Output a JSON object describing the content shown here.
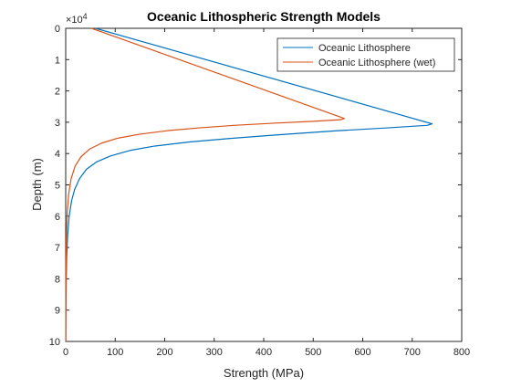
{
  "chart_data": {
    "type": "line",
    "title": "Oceanic Lithospheric Strength Models",
    "xlabel": "Strength (MPa)",
    "ylabel": "Depth (m)",
    "y_exponent_label": "×10",
    "y_exponent_value": "4",
    "xlim": [
      0,
      800
    ],
    "ylim": [
      0,
      100000
    ],
    "y_reversed": true,
    "x_ticks": [
      0,
      100,
      200,
      300,
      400,
      500,
      600,
      700,
      800
    ],
    "x_tick_labels": [
      "0",
      "100",
      "200",
      "300",
      "400",
      "500",
      "600",
      "700",
      "800"
    ],
    "y_ticks": [
      0,
      10000,
      20000,
      30000,
      40000,
      50000,
      60000,
      70000,
      80000,
      90000,
      100000
    ],
    "y_tick_labels": [
      "0",
      "1",
      "2",
      "3",
      "4",
      "5",
      "6",
      "7",
      "8",
      "9",
      "10"
    ],
    "grid": false,
    "legend_position": "top-right",
    "series": [
      {
        "name": "Oceanic Lithosphere",
        "color": "#0072BD",
        "points": [
          [
            60,
            0
          ],
          [
            740,
            30500
          ],
          [
            730,
            31000
          ],
          [
            650,
            31800
          ],
          [
            540,
            32800
          ],
          [
            430,
            34000
          ],
          [
            330,
            35200
          ],
          [
            250,
            36300
          ],
          [
            180,
            37600
          ],
          [
            130,
            39000
          ],
          [
            90,
            40800
          ],
          [
            62,
            42700
          ],
          [
            42,
            45000
          ],
          [
            28,
            48000
          ],
          [
            18,
            51500
          ],
          [
            12,
            55000
          ],
          [
            7,
            60000
          ],
          [
            4,
            66000
          ],
          [
            2,
            73000
          ],
          [
            1,
            82000
          ],
          [
            0.4,
            92000
          ],
          [
            0.2,
            100000
          ]
        ]
      },
      {
        "name": "Oceanic Lithosphere (wet)",
        "color": "#D95319",
        "points": [
          [
            52,
            0
          ],
          [
            563,
            28800
          ],
          [
            555,
            29200
          ],
          [
            500,
            29700
          ],
          [
            420,
            30300
          ],
          [
            340,
            31000
          ],
          [
            270,
            31800
          ],
          [
            205,
            32700
          ],
          [
            150,
            33800
          ],
          [
            105,
            35100
          ],
          [
            72,
            36700
          ],
          [
            48,
            38600
          ],
          [
            31,
            41000
          ],
          [
            19,
            44000
          ],
          [
            11,
            48000
          ],
          [
            6,
            53000
          ],
          [
            3,
            59000
          ],
          [
            1.5,
            66000
          ],
          [
            0.7,
            75000
          ],
          [
            0.3,
            86000
          ],
          [
            0.1,
            100000
          ]
        ]
      }
    ]
  }
}
